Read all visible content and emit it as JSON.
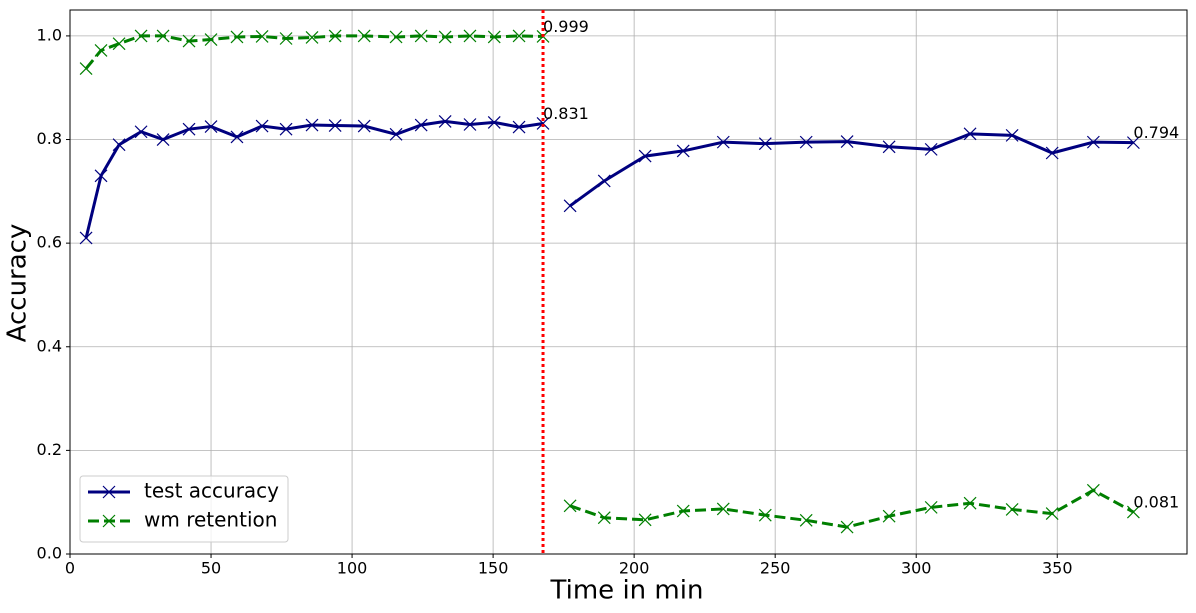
{
  "chart_data": {
    "type": "line",
    "xlabel": "Time in min",
    "ylabel": "Accuracy",
    "x": [
      5.7,
      11.0,
      17.4,
      25.2,
      33.0,
      42.2,
      50,
      59.2,
      68.1,
      76.6,
      85.8,
      94,
      104.3,
      115.6,
      124.5,
      133,
      141.8,
      150.4,
      159.2,
      167.7,
      null,
      177.3,
      189.4,
      203.9,
      217.4,
      231.6,
      246.5,
      261,
      275.5,
      290.4,
      305.3,
      319.1,
      334,
      348.2,
      362.8,
      377
    ],
    "series": [
      {
        "name": "test accuracy",
        "color": "#00007f",
        "linestyle": "solid",
        "values": [
          0.61,
          0.73,
          0.79,
          0.815,
          0.8,
          0.82,
          0.825,
          0.805,
          0.826,
          0.82,
          0.828,
          0.827,
          0.826,
          0.81,
          0.828,
          0.835,
          0.829,
          0.833,
          0.824,
          0.831,
          null,
          0.672,
          0.72,
          0.768,
          0.778,
          0.795,
          0.792,
          0.795,
          0.796,
          0.786,
          0.781,
          0.811,
          0.808,
          0.774,
          0.795,
          0.794
        ],
        "value_labels": [
          null,
          null,
          null,
          null,
          null,
          null,
          null,
          null,
          null,
          null,
          null,
          null,
          null,
          null,
          null,
          null,
          null,
          null,
          null,
          "0.831",
          null,
          null,
          null,
          null,
          null,
          null,
          null,
          null,
          null,
          null,
          null,
          null,
          null,
          null,
          null,
          "0.794"
        ]
      },
      {
        "name": "wm retention",
        "color": "#007f00",
        "linestyle": "dashed",
        "values": [
          0.937,
          0.972,
          0.985,
          1.0,
          1.0,
          0.99,
          0.993,
          0.998,
          0.999,
          0.995,
          0.997,
          1.0,
          1.0,
          0.998,
          1.0,
          0.998,
          1.0,
          0.998,
          1.0,
          0.999,
          null,
          0.093,
          0.07,
          0.066,
          0.083,
          0.087,
          0.075,
          0.065,
          0.052,
          0.073,
          0.09,
          0.098,
          0.086,
          0.078,
          0.123,
          0.081
        ],
        "value_labels": [
          null,
          null,
          null,
          null,
          null,
          null,
          null,
          null,
          null,
          null,
          null,
          null,
          null,
          null,
          null,
          null,
          null,
          null,
          null,
          "0.999",
          null,
          null,
          null,
          null,
          null,
          null,
          null,
          null,
          null,
          null,
          null,
          null,
          null,
          null,
          null,
          "0.081"
        ]
      }
    ],
    "vline": {
      "x": 167.7,
      "color": "#ff0000"
    },
    "xlim": [
      0,
      396
    ],
    "ylim": [
      0,
      1.05
    ],
    "xticks": [
      0,
      50,
      100,
      150,
      200,
      250,
      300,
      350
    ],
    "yticks": [
      {
        "value": 0,
        "label": "0.0"
      },
      0.2,
      0.4,
      0.6,
      0.8,
      {
        "value": 1,
        "label": "1.0"
      }
    ],
    "grid": true,
    "legend": "lower left"
  }
}
